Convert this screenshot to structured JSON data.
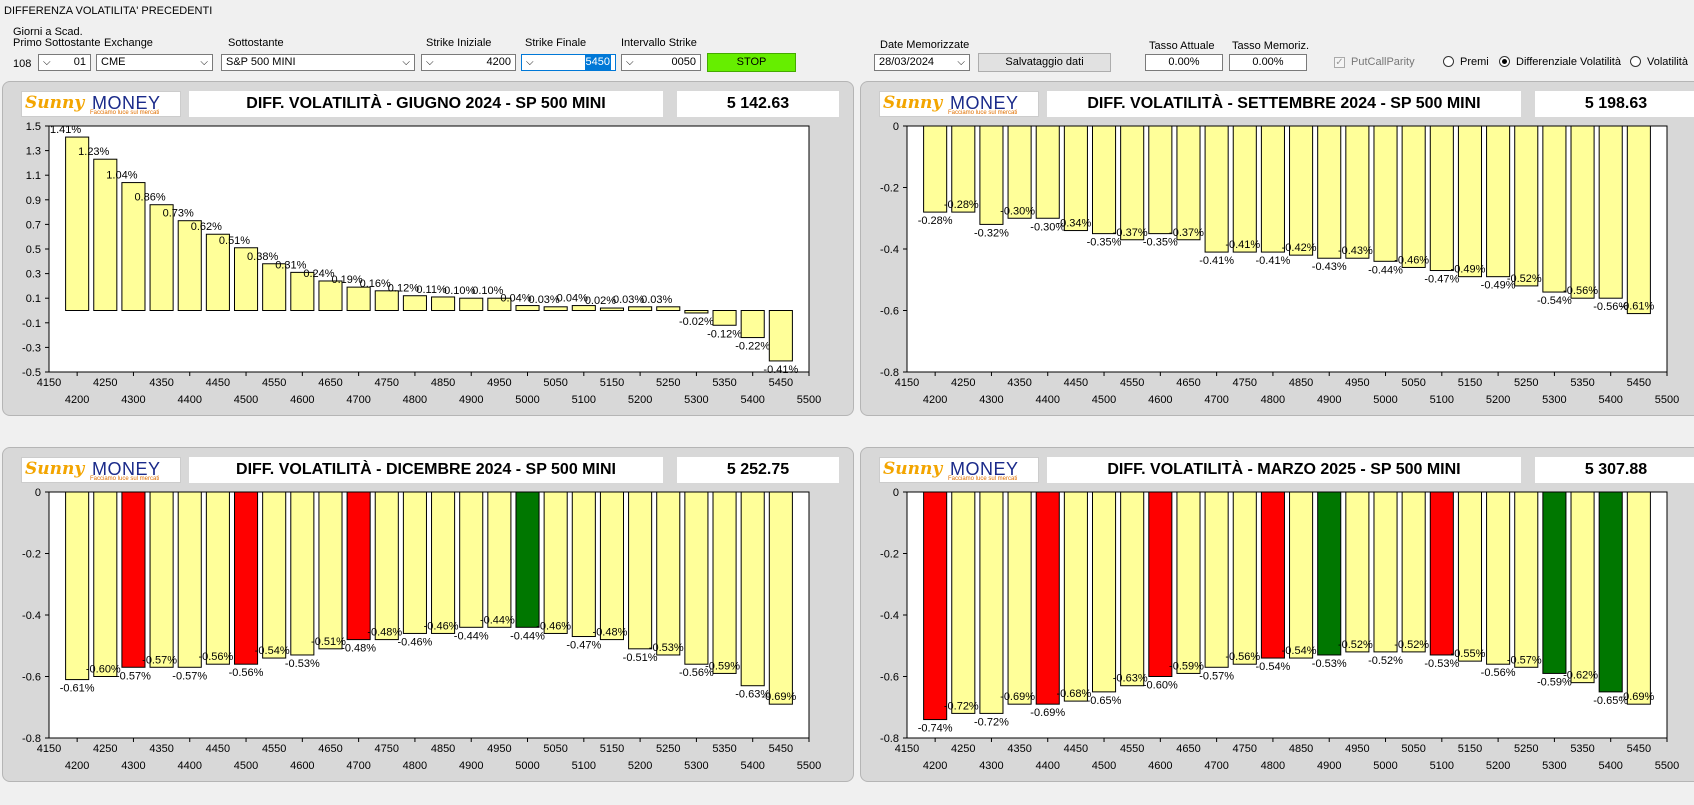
{
  "window_title": "DIFFERENZA VOLATILITA' PRECEDENTI",
  "controls": {
    "giorni_label_1": "Giorni a Scad.",
    "giorni_label_2": "Primo Sottostante",
    "giorni_value": "108",
    "giorni_select": "01",
    "exchange_label": "Exchange",
    "exchange_value": "CME",
    "sottostante_label": "Sottostante",
    "sottostante_value": "S&P 500 MINI",
    "strike_iniziale_label": "Strike Iniziale",
    "strike_iniziale_value": "4200",
    "strike_finale_label": "Strike Finale",
    "strike_finale_value": "5450",
    "intervallo_label": "Intervallo Strike",
    "intervallo_value": "0050",
    "stop_label": "STOP",
    "date_label": "Date Memorizzate",
    "date_value": "28/03/2024",
    "salvataggio_label": "Salvataggio dati",
    "tasso_attuale_label": "Tasso Attuale",
    "tasso_attuale_value": "0.00%",
    "tasso_memoriz_label": "Tasso Memoriz.",
    "tasso_memoriz_value": "0.00%",
    "putcall_label": "PutCallParity",
    "radio_premi": "Premi",
    "radio_diff": "Differenziale Volatilità",
    "radio_vol": "Volatilità",
    "selected_radio": "Differenziale Volatilità"
  },
  "logo": {
    "brand_sun": "Sunny",
    "brand_money": "MONEY",
    "tagline": "Facciamo luce sul mercati"
  },
  "colors": {
    "bar_yellow": "#ffff99",
    "bar_red": "#ff0000",
    "bar_green": "#007700",
    "stop_green": "#66ee00"
  },
  "chart_data": [
    {
      "type": "bar",
      "title": "DIFF. VOLATILITÀ - GIUGNO 2024 - SP 500 MINI",
      "price": "5 142.63",
      "ylim": [
        -0.5,
        1.5
      ],
      "yticks": [
        "1.5",
        "1.3",
        "1.1",
        "0.9",
        "0.7",
        "0.5",
        "0.3",
        "0.1",
        "-0.1",
        "-0.3",
        "-0.5"
      ],
      "xticks_top": [
        "4150",
        "4250",
        "4350",
        "4450",
        "4550",
        "4650",
        "4750",
        "4850",
        "4950",
        "5050",
        "5150",
        "5250",
        "5350",
        "5450"
      ],
      "xticks_bottom": [
        "4200",
        "4300",
        "4400",
        "4500",
        "4600",
        "4700",
        "4800",
        "4900",
        "5000",
        "5100",
        "5200",
        "5300",
        "5400",
        "5500"
      ],
      "categories": [
        4200,
        4250,
        4300,
        4350,
        4400,
        4450,
        4500,
        4550,
        4600,
        4650,
        4700,
        4750,
        4800,
        4850,
        4900,
        4950,
        5000,
        5050,
        5100,
        5150,
        5200,
        5250,
        5300,
        5350,
        5400,
        5450
      ],
      "values": [
        1.41,
        1.23,
        1.04,
        0.86,
        0.73,
        0.62,
        0.51,
        0.38,
        0.31,
        0.24,
        0.19,
        0.16,
        0.12,
        0.11,
        0.1,
        0.1,
        0.04,
        0.03,
        0.04,
        0.02,
        0.03,
        0.03,
        -0.02,
        -0.12,
        -0.22,
        -0.41
      ],
      "labels": [
        "1.41%",
        "1.23%",
        "1.04%",
        "0.86%",
        "0.73%",
        "0.62%",
        "0.51%",
        "0.38%",
        "0.31%",
        "0.24%",
        "0.19%",
        "0.16%",
        "0.12%",
        "0.11%",
        "0.10%",
        "0.10%",
        "0.04%",
        "0.03%",
        "0.04%",
        "0.02%",
        "0.03%",
        "0.03%",
        "-0.02%",
        "-0.12%",
        "-0.22%",
        "-0.41%"
      ],
      "colors": [
        "y",
        "y",
        "y",
        "y",
        "y",
        "y",
        "y",
        "y",
        "y",
        "y",
        "y",
        "y",
        "y",
        "y",
        "y",
        "y",
        "y",
        "y",
        "y",
        "y",
        "y",
        "y",
        "y",
        "y",
        "y",
        "y"
      ]
    },
    {
      "type": "bar",
      "title": "DIFF. VOLATILITÀ - SETTEMBRE 2024 - SP 500 MINI",
      "price": "5 198.63",
      "ylim": [
        -0.8,
        0
      ],
      "yticks": [
        "0",
        "-0.2",
        "-0.4",
        "-0.6",
        "-0.8"
      ],
      "xticks_top": [
        "4150",
        "4250",
        "4350",
        "4450",
        "4550",
        "4650",
        "4750",
        "4850",
        "4950",
        "5050",
        "5150",
        "5250",
        "5350",
        "5450"
      ],
      "xticks_bottom": [
        "4200",
        "4300",
        "4400",
        "4500",
        "4600",
        "4700",
        "4800",
        "4900",
        "5000",
        "5100",
        "5200",
        "5300",
        "5400",
        "5500"
      ],
      "categories": [
        4200,
        4250,
        4300,
        4350,
        4400,
        4450,
        4500,
        4550,
        4600,
        4650,
        4700,
        4750,
        4800,
        4850,
        4900,
        4950,
        5000,
        5050,
        5100,
        5150,
        5200,
        5250,
        5300,
        5350,
        5400,
        5450
      ],
      "values": [
        -0.28,
        -0.28,
        -0.32,
        -0.3,
        -0.3,
        -0.34,
        -0.35,
        -0.37,
        -0.35,
        -0.37,
        -0.41,
        -0.41,
        -0.41,
        -0.42,
        -0.43,
        -0.43,
        -0.44,
        -0.46,
        -0.47,
        -0.49,
        -0.49,
        -0.52,
        -0.54,
        -0.56,
        -0.56,
        -0.61
      ],
      "labels": [
        "-0.28%",
        "-0.28%",
        "-0.32%",
        "-0.30%",
        "-0.30%",
        "-0.34%",
        "-0.35%",
        "-0.37%",
        "-0.35%",
        "-0.37%",
        "-0.41%",
        "-0.41%",
        "-0.41%",
        "-0.42%",
        "-0.43%",
        "-0.43%",
        "-0.44%",
        "-0.46%",
        "-0.47%",
        "-0.49%",
        "-0.49%",
        "-0.52%",
        "-0.54%",
        "-0.56%",
        "-0.56%",
        "-0.61%"
      ],
      "colors": [
        "y",
        "y",
        "y",
        "y",
        "y",
        "y",
        "y",
        "y",
        "y",
        "y",
        "y",
        "y",
        "y",
        "y",
        "y",
        "y",
        "y",
        "y",
        "y",
        "y",
        "y",
        "y",
        "y",
        "y",
        "y",
        "y"
      ]
    },
    {
      "type": "bar",
      "title": "DIFF. VOLATILITÀ - DICEMBRE 2024 - SP 500 MINI",
      "price": "5 252.75",
      "ylim": [
        -0.8,
        0
      ],
      "yticks": [
        "0",
        "-0.2",
        "-0.4",
        "-0.6",
        "-0.8"
      ],
      "xticks_top": [
        "4150",
        "4250",
        "4350",
        "4450",
        "4550",
        "4650",
        "4750",
        "4850",
        "4950",
        "5050",
        "5150",
        "5250",
        "5350",
        "5450"
      ],
      "xticks_bottom": [
        "4200",
        "4300",
        "4400",
        "4500",
        "4600",
        "4700",
        "4800",
        "4900",
        "5000",
        "5100",
        "5200",
        "5300",
        "5400",
        "5500"
      ],
      "categories": [
        4200,
        4250,
        4300,
        4350,
        4400,
        4450,
        4500,
        4550,
        4600,
        4650,
        4700,
        4750,
        4800,
        4850,
        4900,
        4950,
        5000,
        5050,
        5100,
        5150,
        5200,
        5250,
        5300,
        5350,
        5400,
        5450
      ],
      "values": [
        -0.61,
        -0.6,
        -0.57,
        -0.57,
        -0.57,
        -0.56,
        -0.56,
        -0.54,
        -0.53,
        -0.51,
        -0.48,
        -0.48,
        -0.46,
        -0.46,
        -0.44,
        -0.44,
        -0.44,
        -0.46,
        -0.47,
        -0.48,
        -0.51,
        -0.53,
        -0.56,
        -0.59,
        -0.63,
        -0.69
      ],
      "labels": [
        "-0.61%",
        "-0.60%",
        "-0.57%",
        "-0.57%",
        "-0.57%",
        "-0.56%",
        "-0.56%",
        "-0.54%",
        "-0.53%",
        "-0.51%",
        "-0.48%",
        "-0.48%",
        "-0.46%",
        "-0.46%",
        "-0.44%",
        "-0.44%",
        "-0.44%",
        "-0.46%",
        "-0.47%",
        "-0.48%",
        "-0.51%",
        "-0.53%",
        "-0.56%",
        "-0.59%",
        "-0.63%",
        "-0.69%"
      ],
      "colors": [
        "y",
        "y",
        "r",
        "y",
        "y",
        "y",
        "r",
        "y",
        "y",
        "y",
        "r",
        "y",
        "y",
        "y",
        "y",
        "y",
        "g",
        "y",
        "y",
        "y",
        "y",
        "y",
        "y",
        "y",
        "y",
        "y"
      ]
    },
    {
      "type": "bar",
      "title": "DIFF. VOLATILITÀ - MARZO 2025 - SP 500 MINI",
      "price": "5 307.88",
      "ylim": [
        -0.8,
        0
      ],
      "yticks": [
        "0",
        "-0.2",
        "-0.4",
        "-0.6",
        "-0.8"
      ],
      "xticks_top": [
        "4150",
        "4250",
        "4350",
        "4450",
        "4550",
        "4650",
        "4750",
        "4850",
        "4950",
        "5050",
        "5150",
        "5250",
        "5350",
        "5450"
      ],
      "xticks_bottom": [
        "4200",
        "4300",
        "4400",
        "4500",
        "4600",
        "4700",
        "4800",
        "4900",
        "5000",
        "5100",
        "5200",
        "5300",
        "5400",
        "5500"
      ],
      "categories": [
        4200,
        4250,
        4300,
        4350,
        4400,
        4450,
        4500,
        4550,
        4600,
        4650,
        4700,
        4750,
        4800,
        4850,
        4900,
        4950,
        5000,
        5050,
        5100,
        5150,
        5200,
        5250,
        5300,
        5350,
        5400,
        5450
      ],
      "values": [
        -0.74,
        -0.72,
        -0.72,
        -0.69,
        -0.69,
        -0.68,
        -0.65,
        -0.63,
        -0.6,
        -0.59,
        -0.57,
        -0.56,
        -0.54,
        -0.54,
        -0.53,
        -0.52,
        -0.52,
        -0.52,
        -0.53,
        -0.55,
        -0.56,
        -0.57,
        -0.59,
        -0.62,
        -0.65,
        -0.69
      ],
      "labels": [
        "-0.74%",
        "-0.72%",
        "-0.72%",
        "-0.69%",
        "-0.69%",
        "-0.68%",
        "-0.65%",
        "-0.63%",
        "-0.60%",
        "-0.59%",
        "-0.57%",
        "-0.56%",
        "-0.54%",
        "-0.54%",
        "-0.53%",
        "-0.52%",
        "-0.52%",
        "-0.52%",
        "-0.53%",
        "-0.55%",
        "-0.56%",
        "-0.57%",
        "-0.59%",
        "-0.62%",
        "-0.65%",
        "-0.69%"
      ],
      "colors": [
        "r",
        "y",
        "y",
        "y",
        "r",
        "y",
        "y",
        "y",
        "r",
        "y",
        "y",
        "y",
        "r",
        "y",
        "g",
        "y",
        "y",
        "y",
        "r",
        "y",
        "y",
        "y",
        "g",
        "y",
        "g",
        "y"
      ]
    }
  ]
}
